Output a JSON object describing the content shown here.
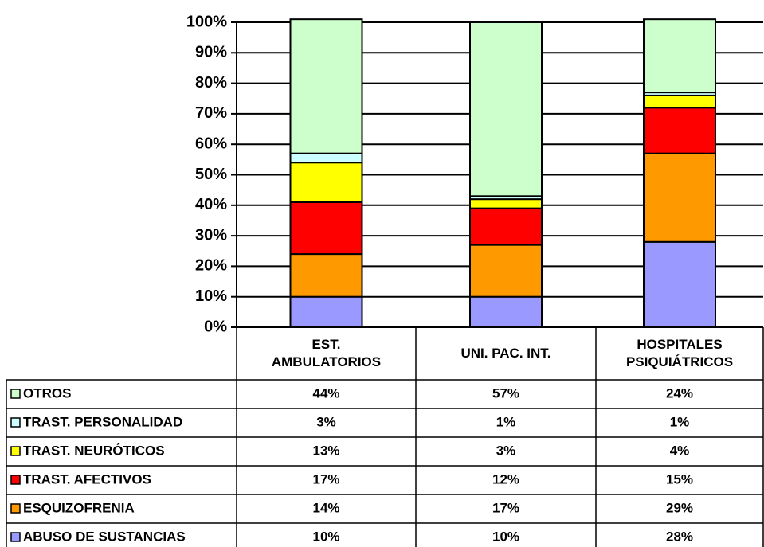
{
  "chart_data": {
    "type": "stacked_bar",
    "categories": [
      "EST. AMBULATORIOS",
      "UNI. PAC. INT.",
      "HOSPITALES PSIQUIÁTRICOS"
    ],
    "ylim": [
      0,
      100
    ],
    "yticks": [
      {
        "value": 0,
        "label": "0%"
      },
      {
        "value": 10,
        "label": "10%"
      },
      {
        "value": 20,
        "label": "20%"
      },
      {
        "value": 30,
        "label": "30%"
      },
      {
        "value": 40,
        "label": "40%"
      },
      {
        "value": 50,
        "label": "50%"
      },
      {
        "value": 60,
        "label": "60%"
      },
      {
        "value": 70,
        "label": "70%"
      },
      {
        "value": 80,
        "label": "80%"
      },
      {
        "value": 90,
        "label": "90%"
      },
      {
        "value": 100,
        "label": "100%"
      }
    ],
    "grid": true,
    "series": [
      {
        "name": "ABUSO DE SUSTANCIAS",
        "color": "#9999ff",
        "values": [
          10,
          10,
          28
        ],
        "value_labels": [
          "10%",
          "10%",
          "28%"
        ]
      },
      {
        "name": "ESQUIZOFRENIA",
        "color": "#ff9900",
        "values": [
          14,
          17,
          29
        ],
        "value_labels": [
          "14%",
          "17%",
          "29%"
        ]
      },
      {
        "name": "TRAST. AFECTIVOS",
        "color": "#ff0000",
        "values": [
          17,
          12,
          15
        ],
        "value_labels": [
          "17%",
          "12%",
          "15%"
        ]
      },
      {
        "name": "TRAST. NEURÓTICOS",
        "color": "#ffff00",
        "values": [
          13,
          3,
          4
        ],
        "value_labels": [
          "13%",
          "3%",
          "4%"
        ]
      },
      {
        "name": "TRAST. PERSONALIDAD",
        "color": "#ccffff",
        "values": [
          3,
          1,
          1
        ],
        "value_labels": [
          "3%",
          "1%",
          "1%"
        ]
      },
      {
        "name": "OTROS",
        "color": "#ccffcc",
        "values": [
          44,
          57,
          24
        ],
        "value_labels": [
          "44%",
          "57%",
          "24%"
        ]
      }
    ]
  }
}
